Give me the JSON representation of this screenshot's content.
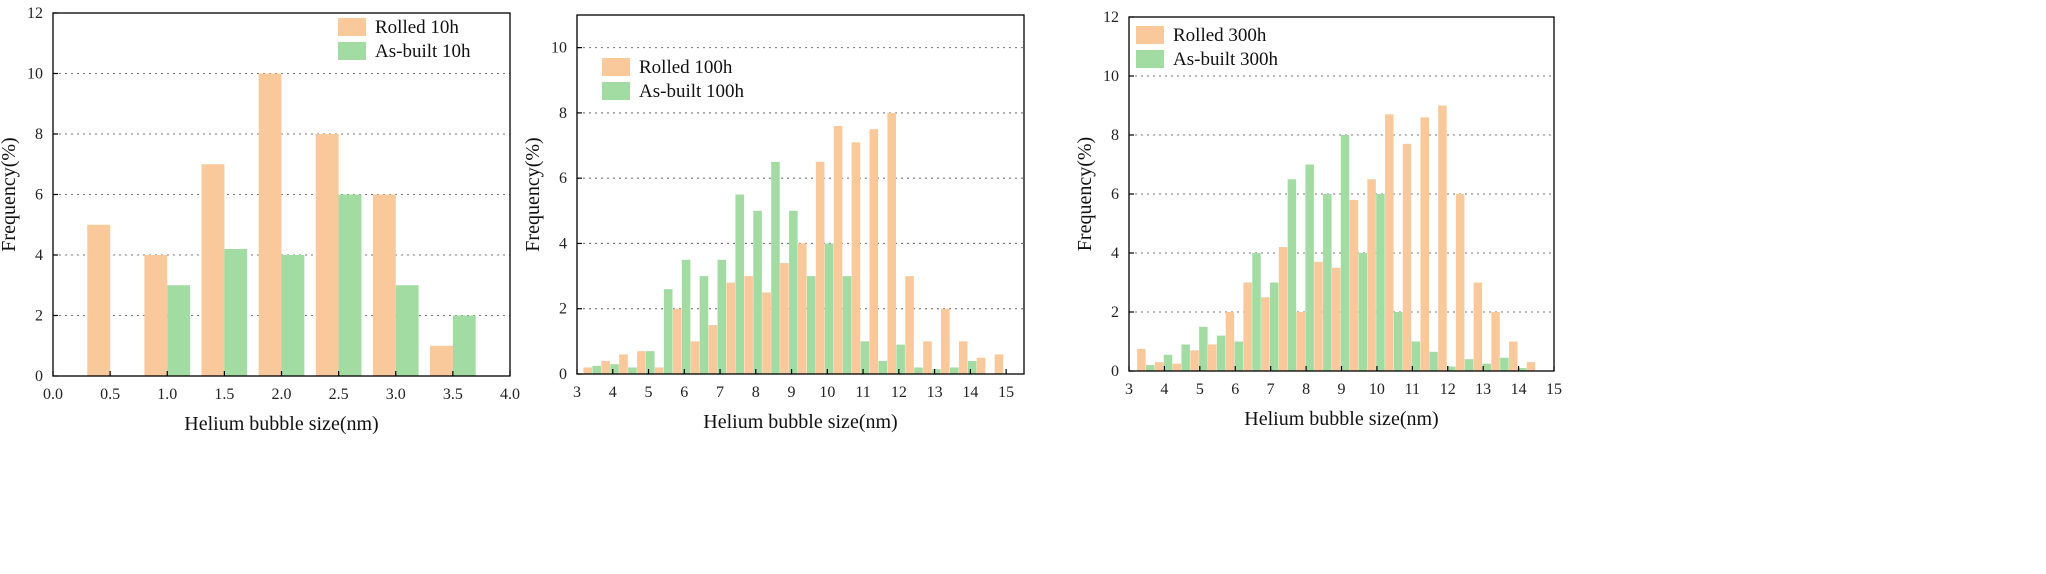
{
  "colors": {
    "rolled": "#f9c89b",
    "asbuilt": "#a3dca3",
    "axis": "#000000",
    "grid": "#777777"
  },
  "chart_data": [
    {
      "type": "bar",
      "xlabel": "Helium bubble size(nm)",
      "ylabel": "Frequency(%)",
      "xlim": [
        0.0,
        4.0
      ],
      "ylim": [
        0,
        12
      ],
      "xticks": [
        "0.0",
        "0.5",
        "1.0",
        "1.5",
        "2.0",
        "2.5",
        "3.0",
        "3.5",
        "4.0"
      ],
      "yticks": [
        "0",
        "2",
        "4",
        "6",
        "8",
        "10",
        "12"
      ],
      "gridlines": [
        2,
        4,
        6,
        8,
        10
      ],
      "bar_width": 0.2,
      "legend_position": "top-right",
      "series": [
        {
          "name": "Rolled 10h",
          "x": [
            0.4,
            0.9,
            1.4,
            1.9,
            2.4,
            2.9,
            3.4
          ],
          "values": [
            5,
            4,
            7,
            10,
            8,
            6,
            1
          ]
        },
        {
          "name": "As-built 10h",
          "x": [
            1.1,
            1.6,
            2.1,
            2.6,
            3.1,
            3.6
          ],
          "values": [
            3,
            4.2,
            4,
            6,
            3,
            2
          ]
        }
      ]
    },
    {
      "type": "bar",
      "xlabel": "Helium bubble size(nm)",
      "ylabel": "Frequency(%)",
      "xlim": [
        3,
        15.5
      ],
      "ylim": [
        0,
        11
      ],
      "xticks": [
        "3",
        "4",
        "5",
        "6",
        "7",
        "8",
        "9",
        "10",
        "11",
        "12",
        "13",
        "14",
        "15"
      ],
      "yticks": [
        "0",
        "2",
        "4",
        "6",
        "8",
        "10"
      ],
      "gridlines": [
        2,
        4,
        6,
        8,
        10
      ],
      "bar_width": 0.24,
      "legend_position": "top-left",
      "series": [
        {
          "name": "Rolled 100h",
          "x": [
            3.3,
            3.8,
            4.3,
            4.8,
            5.3,
            5.8,
            6.3,
            6.8,
            7.3,
            7.8,
            8.3,
            8.8,
            9.3,
            9.8,
            10.3,
            10.8,
            11.3,
            11.8,
            12.3,
            12.8,
            13.3,
            13.8,
            14.3,
            14.8
          ],
          "values": [
            0.2,
            0.4,
            0.6,
            0.7,
            0.2,
            2.0,
            1.0,
            1.5,
            2.8,
            3.0,
            2.5,
            3.4,
            4.0,
            6.5,
            7.6,
            7.1,
            7.5,
            8.0,
            3.0,
            1.0,
            2.0,
            1.0,
            0.5,
            0.6
          ]
        },
        {
          "name": "As-built 100h",
          "x": [
            3.55,
            4.05,
            4.55,
            5.05,
            5.55,
            6.05,
            6.55,
            7.05,
            7.55,
            8.05,
            8.55,
            9.05,
            9.55,
            10.05,
            10.55,
            11.05,
            11.55,
            12.05,
            12.55,
            13.05,
            13.55,
            14.05
          ],
          "values": [
            0.25,
            0.3,
            0.2,
            0.7,
            2.6,
            3.5,
            3.0,
            3.5,
            5.5,
            5.0,
            6.5,
            5.0,
            3.0,
            4.0,
            3.0,
            1.0,
            0.4,
            0.9,
            0.2,
            0.15,
            0.2,
            0.4
          ]
        }
      ]
    },
    {
      "type": "bar",
      "xlabel": "Helium bubble size(nm)",
      "ylabel": "Frequency(%)",
      "xlim": [
        3,
        15
      ],
      "ylim": [
        0,
        12
      ],
      "xticks": [
        "3",
        "4",
        "5",
        "6",
        "7",
        "8",
        "9",
        "10",
        "11",
        "12",
        "13",
        "14",
        "15"
      ],
      "yticks": [
        "0",
        "2",
        "4",
        "6",
        "8",
        "10",
        "12"
      ],
      "gridlines": [
        2,
        4,
        6,
        8,
        10
      ],
      "bar_width": 0.24,
      "legend_position": "top-left",
      "series": [
        {
          "name": "Rolled 300h",
          "x": [
            3.35,
            3.85,
            4.35,
            4.85,
            5.35,
            5.85,
            6.35,
            6.85,
            7.35,
            7.85,
            8.35,
            8.85,
            9.35,
            9.85,
            10.35,
            10.85,
            11.35,
            11.85,
            12.35,
            12.85,
            13.35,
            13.85,
            14.35
          ],
          "values": [
            0.75,
            0.3,
            0.25,
            0.7,
            0.9,
            2.0,
            3.0,
            2.5,
            4.2,
            2.0,
            3.7,
            3.5,
            5.8,
            6.5,
            8.7,
            7.7,
            8.6,
            9.0,
            6.0,
            3.0,
            2.0,
            1.0,
            0.3
          ]
        },
        {
          "name": "As-built 300h",
          "x": [
            3.6,
            4.1,
            4.6,
            5.1,
            5.6,
            6.1,
            6.6,
            7.1,
            7.6,
            8.1,
            8.6,
            9.1,
            9.6,
            10.1,
            10.6,
            11.1,
            11.6,
            12.1,
            12.6,
            13.1,
            13.6,
            14.1
          ],
          "values": [
            0.2,
            0.55,
            0.9,
            1.5,
            1.2,
            1.0,
            4.0,
            3.0,
            6.5,
            7.0,
            6.0,
            8.0,
            4.0,
            6.0,
            2.0,
            1.0,
            0.65,
            0.15,
            0.4,
            0.25,
            0.45,
            0.1
          ]
        }
      ]
    }
  ]
}
